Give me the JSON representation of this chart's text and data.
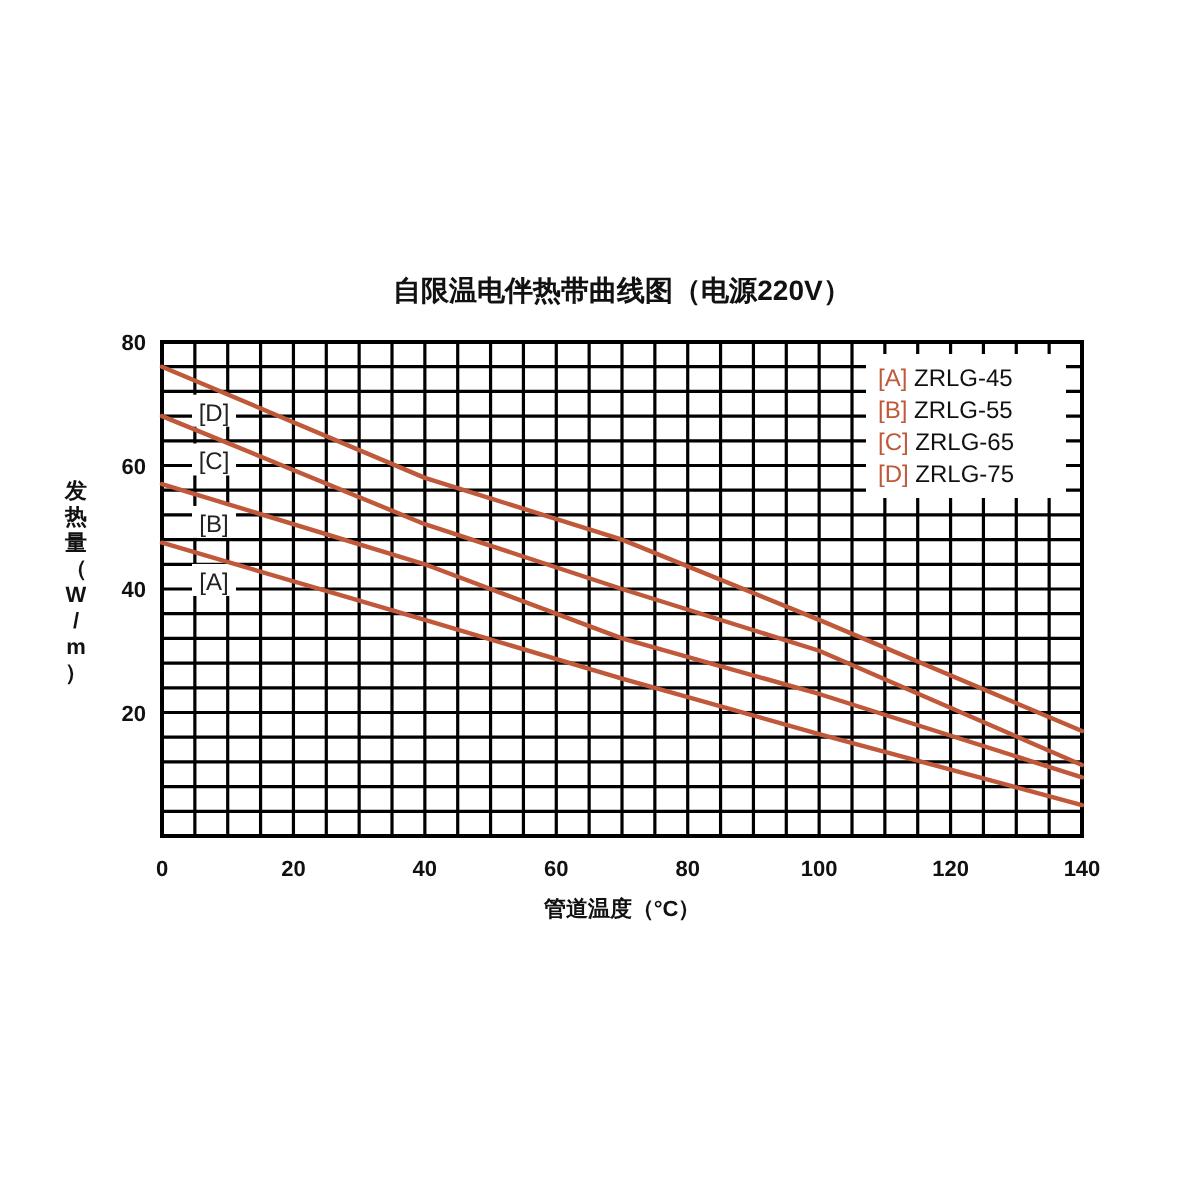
{
  "chart_data": {
    "type": "line",
    "title": "自限温电伴热带曲线图（电源220V）",
    "xlabel": "管道温度（°C）",
    "ylabel": "发热量（W/m）",
    "xlim": [
      0,
      140
    ],
    "ylim": [
      0,
      80
    ],
    "xticks": [
      0,
      {
        "value": 5,
        "label": null
      },
      {
        "value": 10,
        "label": null
      },
      {
        "value": 15,
        "label": null
      },
      20,
      {
        "value": 25,
        "label": null
      },
      {
        "value": 30,
        "label": null
      },
      {
        "value": 35,
        "label": null
      },
      40,
      {
        "value": 45,
        "label": null
      },
      {
        "value": 50,
        "label": null
      },
      {
        "value": 55,
        "label": null
      },
      60,
      {
        "value": 65,
        "label": null
      },
      {
        "value": 70,
        "label": null
      },
      {
        "value": 75,
        "label": null
      },
      80,
      {
        "value": 85,
        "label": null
      },
      {
        "value": 90,
        "label": null
      },
      {
        "value": 95,
        "label": null
      },
      100,
      {
        "value": 105,
        "label": null
      },
      {
        "value": 110,
        "label": null
      },
      {
        "value": 115,
        "label": null
      },
      120,
      {
        "value": 125,
        "label": null
      },
      {
        "value": 130,
        "label": null
      },
      {
        "value": 135,
        "label": null
      },
      140
    ],
    "yticks": [
      {
        "value": 0,
        "label": null
      },
      {
        "value": 4,
        "label": null
      },
      {
        "value": 8,
        "label": null
      },
      {
        "value": 12,
        "label": null
      },
      {
        "value": 16,
        "label": null
      },
      20,
      {
        "value": 24,
        "label": null
      },
      {
        "value": 28,
        "label": null
      },
      {
        "value": 32,
        "label": null
      },
      {
        "value": 36,
        "label": null
      },
      40,
      {
        "value": 44,
        "label": null
      },
      {
        "value": 48,
        "label": null
      },
      {
        "value": 52,
        "label": null
      },
      {
        "value": 56,
        "label": null
      },
      60,
      {
        "value": 64,
        "label": null
      },
      {
        "value": 68,
        "label": null
      },
      {
        "value": 72,
        "label": null
      },
      {
        "value": 76,
        "label": null
      },
      80
    ],
    "x": [
      0,
      40,
      70,
      100,
      140
    ],
    "series": [
      {
        "name": "[A]",
        "color": "#c0583a",
        "values": [
          47.5,
          35,
          25.5,
          16.5,
          5
        ]
      },
      {
        "name": "[B]",
        "color": "#c0583a",
        "values": [
          57,
          44,
          32,
          23,
          9.5
        ]
      },
      {
        "name": "[C]",
        "color": "#c0583a",
        "values": [
          68,
          50.5,
          40,
          30,
          11.5
        ]
      },
      {
        "name": "[D]",
        "color": "#c0583a",
        "values": [
          76,
          58,
          48,
          35,
          17
        ]
      }
    ],
    "annotations": [
      "[A] ZRLG-45",
      "[B] ZRLG-55",
      "[C] ZRLG-65",
      "[D] ZRLG-75"
    ],
    "grid": true,
    "marker": "none",
    "line_style": "solid"
  }
}
